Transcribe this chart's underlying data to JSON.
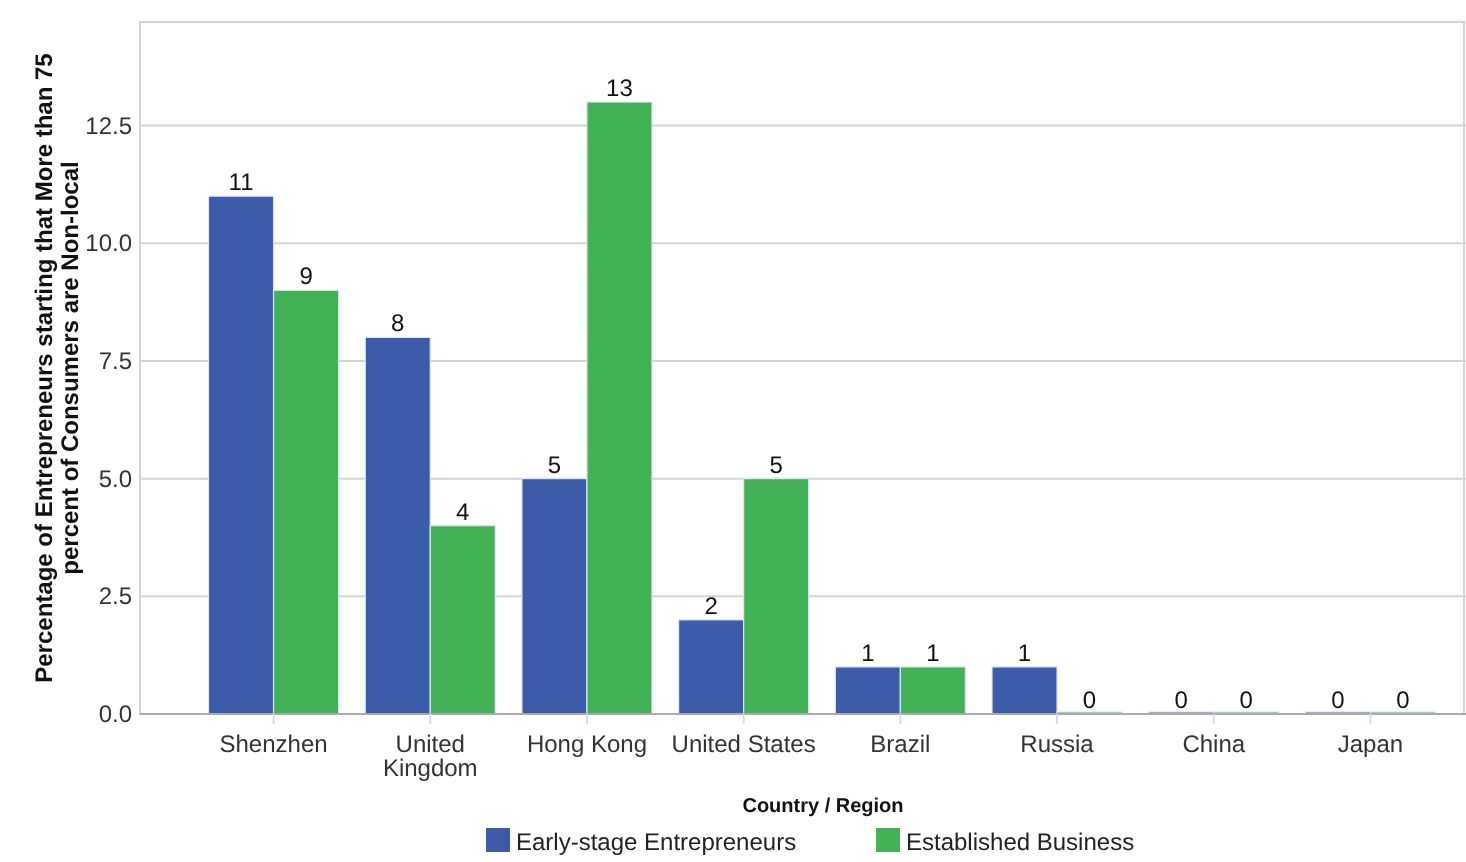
{
  "chart_data": {
    "type": "bar",
    "xlabel": "Country / Region",
    "ylabel": "Percentage of Entrepreneurs starting that More than 75 percent of Consumers are Non-local",
    "categories": [
      "Shenzhen",
      "United Kingdom",
      "Hong Kong",
      "United States",
      "Brazil",
      "Russia",
      "China",
      "Japan"
    ],
    "series": [
      {
        "name": "Early-stage Entrepreneurs",
        "color": "#3c5ba8",
        "values": [
          11,
          8,
          5,
          2,
          1,
          1,
          0,
          0
        ]
      },
      {
        "name": "Established Business",
        "color": "#43b155",
        "values": [
          9,
          4,
          13,
          5,
          1,
          0,
          0,
          0
        ]
      }
    ],
    "ylim": [
      0,
      14.7
    ],
    "yticks": [
      {
        "value": 0,
        "label": "0.0"
      },
      {
        "value": 2.5,
        "label": "2.5"
      },
      {
        "value": 5,
        "label": "5.0"
      },
      {
        "value": 7.5,
        "label": "7.5"
      },
      {
        "value": 10,
        "label": "10.0"
      },
      {
        "value": 12.5,
        "label": "12.5"
      }
    ],
    "grid": "y",
    "legend": "bottom",
    "data_labels": true
  }
}
